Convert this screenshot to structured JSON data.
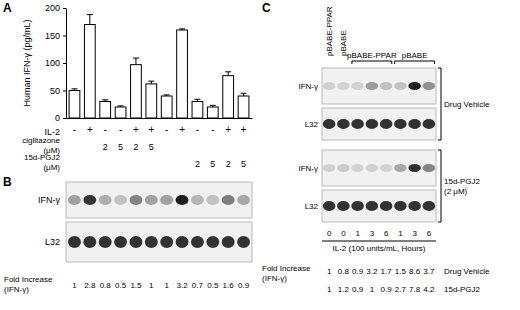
{
  "chart_data": {
    "type": "bar",
    "y_label": "Human IFN-γ (pg/mL)",
    "category_label": "IL-2",
    "categories": [
      "-",
      "+",
      "-",
      "-",
      "+",
      "+",
      "-",
      "+",
      "-",
      "-",
      "+",
      "+"
    ],
    "category_rows": [
      {
        "label": [
          "ciglitazone",
          "(μM)"
        ],
        "values": [
          null,
          null,
          "2",
          "5",
          "2",
          "5",
          null,
          null,
          null,
          null,
          null,
          null
        ]
      },
      {
        "label": [
          "15d-PGJ2",
          "(μM)"
        ],
        "values": [
          null,
          null,
          null,
          null,
          null,
          null,
          null,
          null,
          "2",
          "5",
          "2",
          "5"
        ]
      }
    ],
    "values": [
      50,
      170,
      30,
      20,
      97,
      62,
      40,
      160,
      30,
      20,
      77,
      40
    ],
    "errors": [
      3,
      18,
      3,
      2,
      12,
      5,
      2,
      2,
      4,
      3,
      7,
      5
    ],
    "ylim": [
      0,
      200
    ],
    "yticks": [
      0,
      50,
      100,
      150,
      200
    ],
    "color": "#ffffff"
  },
  "panel_labels": [
    "A",
    "B",
    "C"
  ],
  "blot_b": {
    "rows": [
      "IFN-γ",
      "L32"
    ],
    "fold_label": [
      "Fold Increase",
      "(IFN-γ)"
    ],
    "fold": [
      1,
      2.8,
      0.8,
      0.5,
      1.5,
      1,
      1,
      3.2,
      0.7,
      0.5,
      1.6,
      0.9
    ]
  },
  "blot_c": {
    "lane_labels": [
      "pBABE-PPAR",
      "pBABE"
    ],
    "groups": [
      "pBABE-PPAR",
      "pBABE"
    ],
    "blocks": [
      {
        "condition": [
          "Drug Vehicle"
        ],
        "rows": [
          "IFN-γ",
          "L32"
        ]
      },
      {
        "condition": [
          "15d-PGJ2",
          "(2 μM)"
        ],
        "rows": [
          "IFN-γ",
          "L32"
        ]
      }
    ],
    "hours": [
      0,
      0,
      1,
      3,
      6,
      1,
      3,
      6
    ],
    "x_label": "IL-2 (100 units/mL, Hours)",
    "fold_label": [
      "Fold Increase",
      "(IFN-γ)"
    ],
    "fold": [
      {
        "name": "Drug Vehicle",
        "values": [
          1,
          0.8,
          0.9,
          3.2,
          1.7,
          1.5,
          8.6,
          3.7
        ]
      },
      {
        "name": "15d-PGJ2",
        "values": [
          1,
          1.2,
          0.9,
          1,
          0.9,
          2.7,
          7.8,
          4.2
        ]
      }
    ]
  }
}
